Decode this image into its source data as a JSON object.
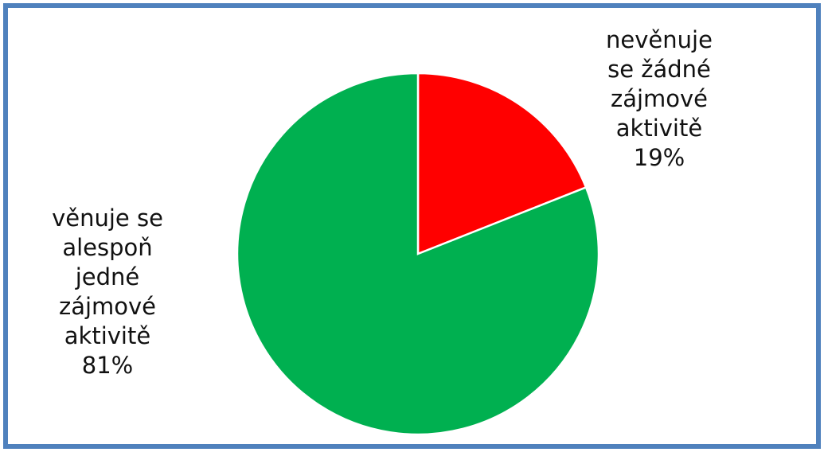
{
  "chart_data": {
    "type": "pie",
    "start_angle_deg": 0,
    "direction": "clockwise",
    "slices": [
      {
        "label_lines": [
          "nevěnuje",
          "se žádné",
          "zájmové",
          "aktivitě"
        ],
        "percent_label": "19%",
        "value": 19,
        "color": "#ff0000"
      },
      {
        "label_lines": [
          "věnuje se",
          "alespoň",
          "jedné",
          "zájmové",
          "aktivitě"
        ],
        "percent_label": "81%",
        "value": 81,
        "color": "#00b050"
      }
    ],
    "border_color": "#4f81bd",
    "slice_stroke": "#ffffff"
  }
}
